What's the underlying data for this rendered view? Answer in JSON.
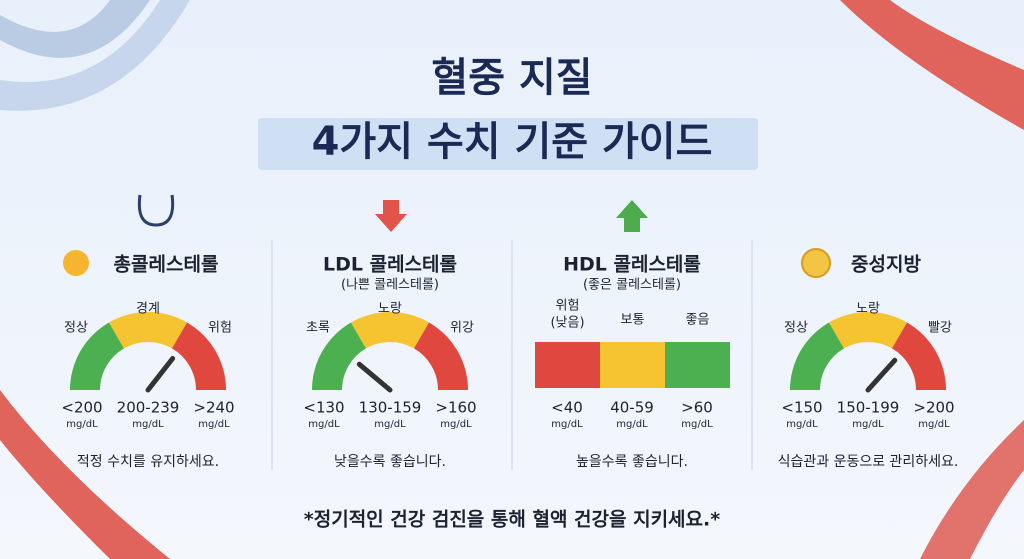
{
  "header": {
    "title_lines": [
      "혈중 지질",
      "4가지 수치 기준 가이드"
    ]
  },
  "panels": [
    {
      "title": "총콜레스테롤",
      "zones": [
        {
          "label": "정상",
          "range": "<200",
          "unit": "mg/dL"
        },
        {
          "label": "경계",
          "range": "200-239",
          "unit": "mg/dL"
        },
        {
          "label": "위험",
          "range": ">240",
          "unit": "mg/dL"
        }
      ],
      "note": "적정 수치를 유지하세요."
    },
    {
      "title": "LDL 콜레스테롤",
      "subtitle": "(나쁜 콜레스테롤)",
      "zones": [
        {
          "label": "초록",
          "range": "<130",
          "unit": "mg/dL"
        },
        {
          "label": "노랑",
          "range": "130-159",
          "unit": "mg/dL"
        },
        {
          "label": "위강",
          "range": ">160",
          "unit": "mg/dL"
        }
      ],
      "note": "낮을수록 좋습니다."
    },
    {
      "title": "HDL 콜레스테롤",
      "subtitle": "(좋은 콜레스테롤)",
      "zones": [
        {
          "label": "위험",
          "label_sub": "(낮음)",
          "range": "<40",
          "unit": "mg/dL"
        },
        {
          "label": "보통",
          "range": "40-59",
          "unit": "mg/dL"
        },
        {
          "label": "좋음",
          "range": ">60",
          "unit": "mg/dL"
        }
      ],
      "note": "높을수록 좋습니다."
    },
    {
      "title": "중성지방",
      "zones": [
        {
          "label": "정상",
          "range": "<150",
          "unit": "mg/dL"
        },
        {
          "label": "노랑",
          "range": "150-199",
          "unit": "mg/dL"
        },
        {
          "label": "빨강",
          "range": ">200",
          "unit": "mg/dL"
        }
      ],
      "note": "식습관과 운동으로 관리하세요."
    }
  ],
  "footer": {
    "note": "*정기적인 건강 검진을 통해 혈액 건강을 지키세요.*"
  }
}
